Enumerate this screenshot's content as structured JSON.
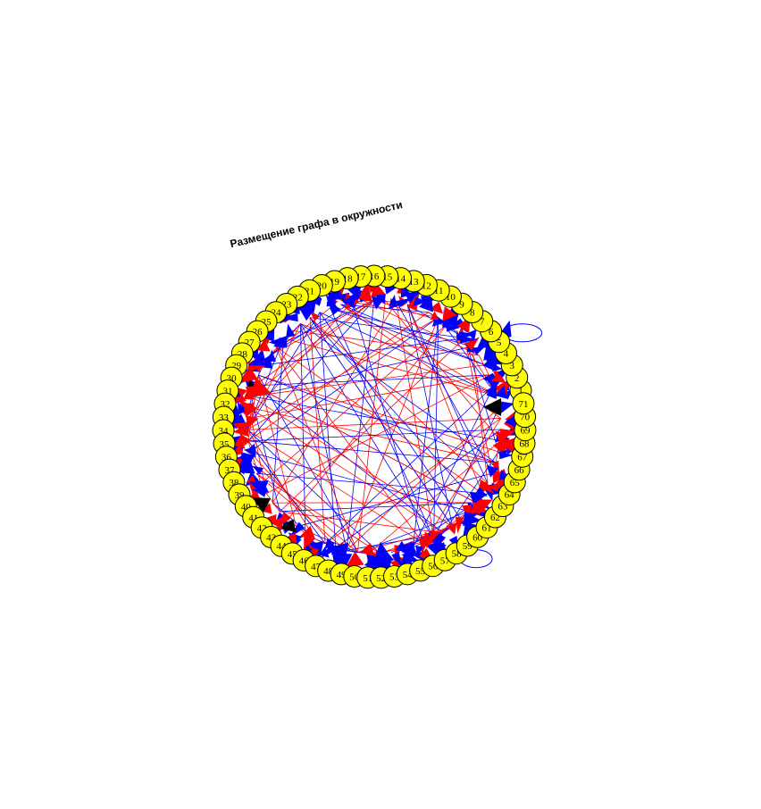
{
  "title": "Размещение графа в окружности",
  "graph": {
    "node_count": 71,
    "node_labels": [
      "1",
      "2",
      "3",
      "4",
      "5",
      "6",
      "7",
      "8",
      "9",
      "10",
      "11",
      "12",
      "13",
      "14",
      "15",
      "16",
      "17",
      "18",
      "19",
      "20",
      "21",
      "22",
      "23",
      "24",
      "25",
      "26",
      "27",
      "28",
      "29",
      "30",
      "31",
      "32",
      "33",
      "34",
      "35",
      "36",
      "37",
      "38",
      "39",
      "40",
      "41",
      "42",
      "43",
      "44",
      "45",
      "46",
      "47",
      "48",
      "49",
      "50",
      "51",
      "52",
      "53",
      "54",
      "55",
      "56",
      "57",
      "58",
      "59",
      "60",
      "61",
      "62",
      "63",
      "64",
      "65",
      "66",
      "67",
      "68",
      "69",
      "70",
      "71"
    ],
    "node_color": "#ffff00",
    "node_border_color": "#000000",
    "edge_colors": {
      "blue": "#0000ff",
      "red": "#ff0000",
      "black": "#000000"
    },
    "layout": "circle",
    "self_loops_at": [
      "5",
      "58"
    ]
  }
}
